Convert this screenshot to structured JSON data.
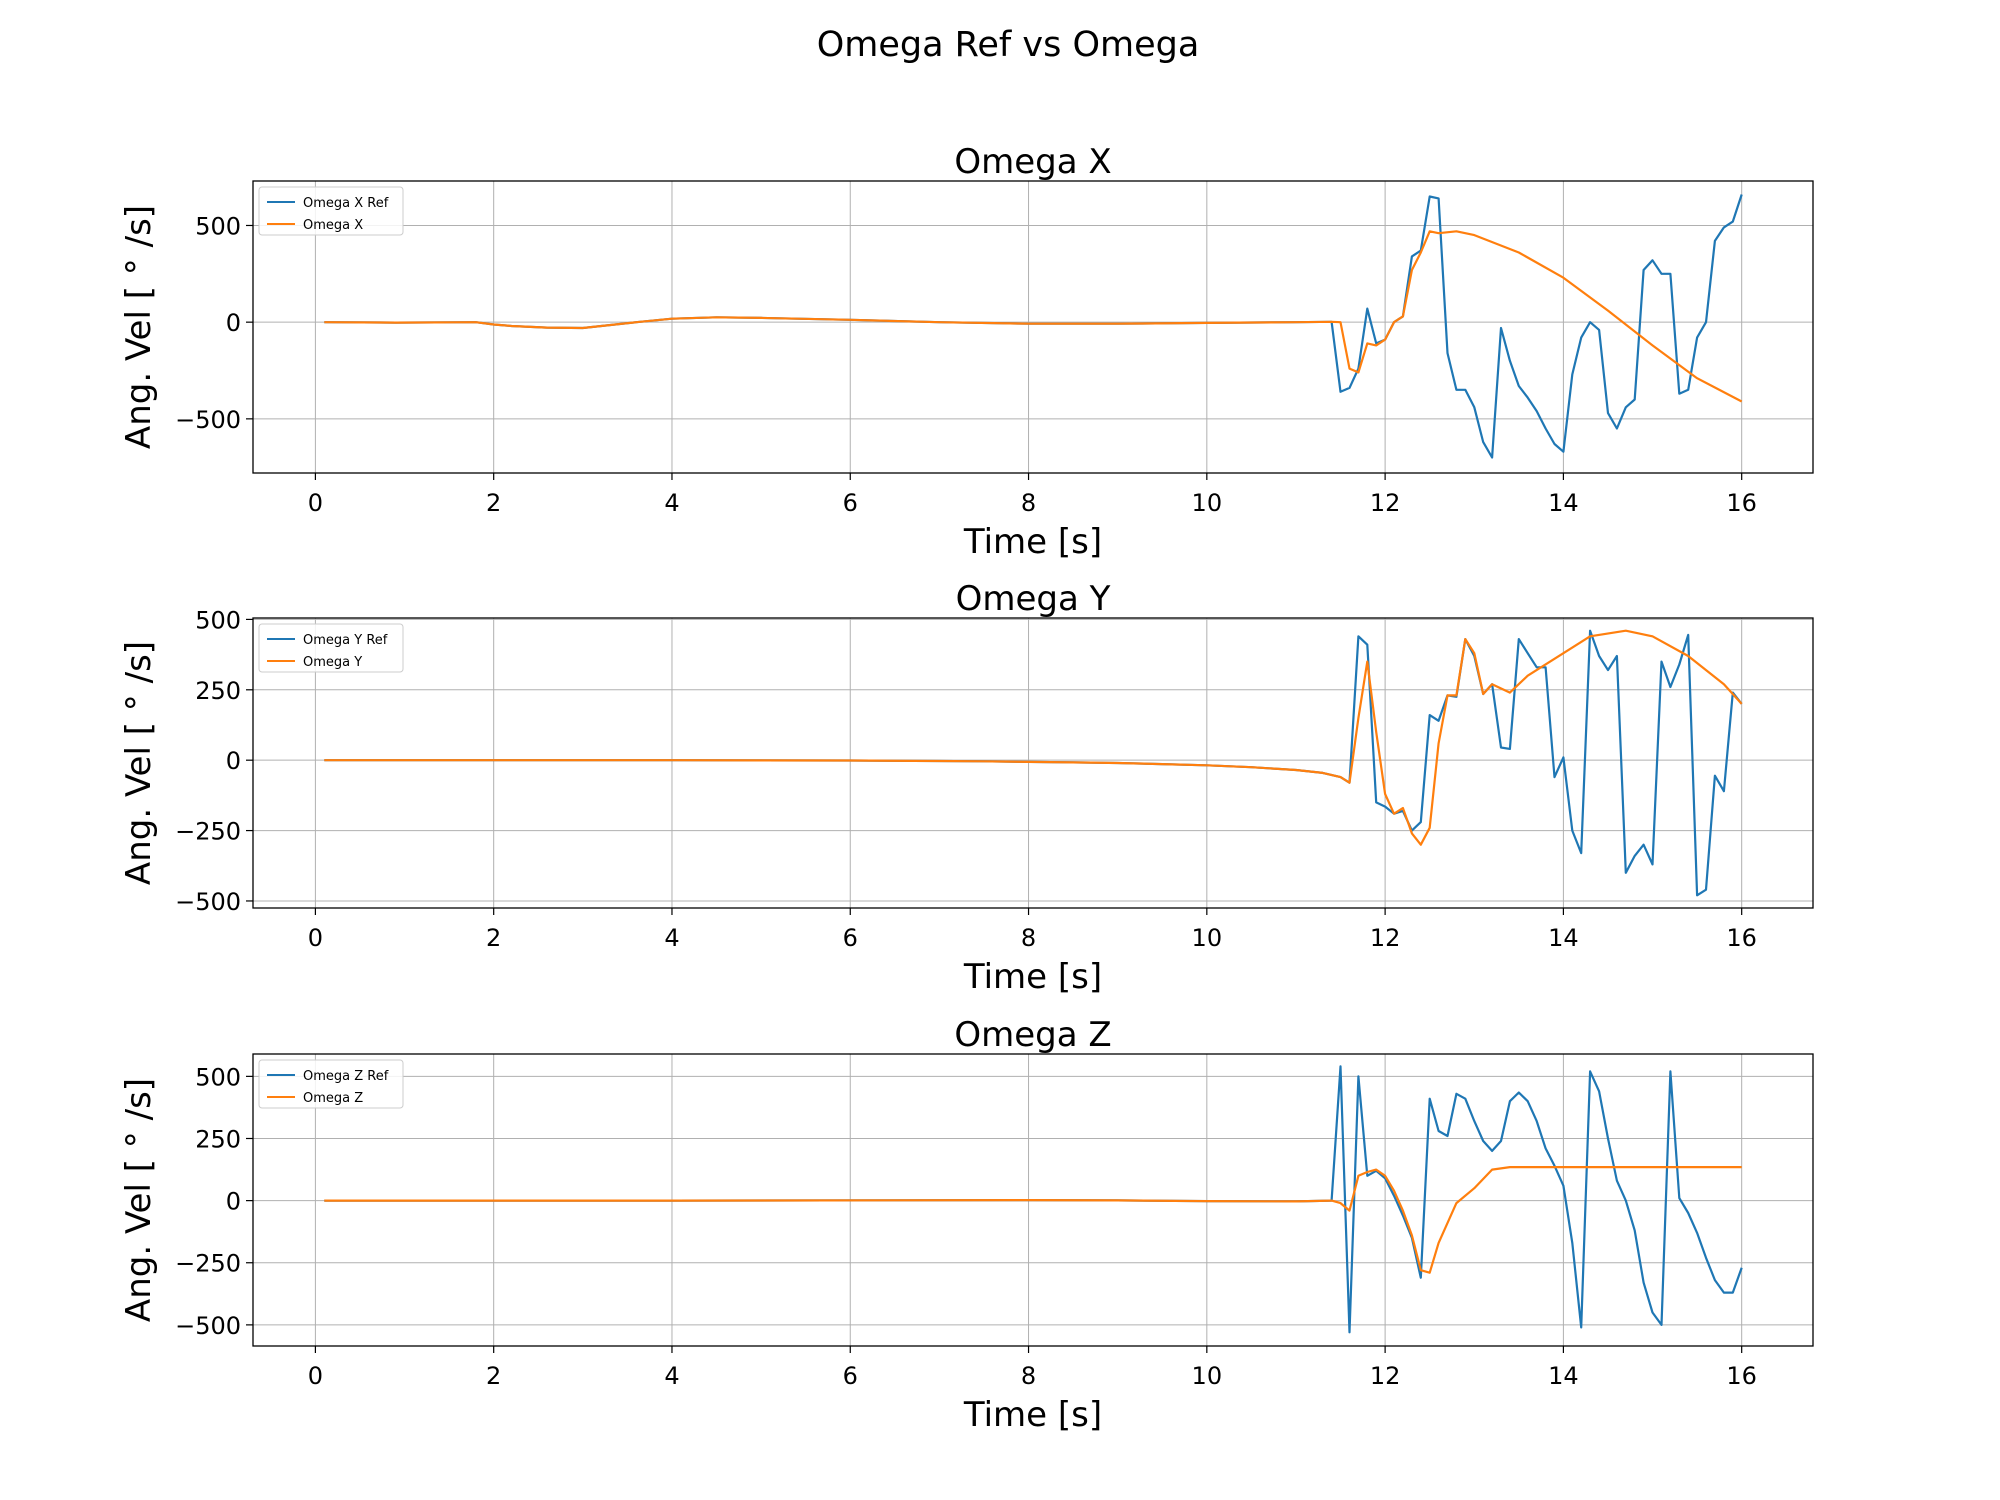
{
  "figure": {
    "title": "Omega Ref vs Omega"
  },
  "colors": {
    "ref": "#1f77b4",
    "actual": "#ff7f0e",
    "grid": "#b0b0b0"
  },
  "chart_data": [
    {
      "type": "line",
      "title": "Omega X",
      "xlabel": "Time [s]",
      "ylabel": "Ang. Vel [ ° /s]",
      "xlim": [
        -0.7,
        16.8
      ],
      "ylim": [
        -780,
        730
      ],
      "xticks": [
        0,
        2,
        4,
        6,
        8,
        10,
        12,
        14,
        16
      ],
      "yticks": [
        -500,
        0,
        500
      ],
      "ytick_labels": [
        "−500",
        "0",
        "500"
      ],
      "grid": true,
      "legend": "upper-left",
      "series": [
        {
          "name": "Omega X Ref",
          "x": [
            0.1,
            0.9,
            1.8,
            2.0,
            2.2,
            2.6,
            3.0,
            3.6,
            4.0,
            4.5,
            5.0,
            6.0,
            7.0,
            8.0,
            9.0,
            10.0,
            11.0,
            11.4,
            11.5,
            11.6,
            11.7,
            11.8,
            11.9,
            12.0,
            12.1,
            12.2,
            12.3,
            12.4,
            12.5,
            12.6,
            12.7,
            12.8,
            12.9,
            13.0,
            13.1,
            13.2,
            13.3,
            13.4,
            13.5,
            13.6,
            13.7,
            13.8,
            13.9,
            14.0,
            14.1,
            14.2,
            14.3,
            14.4,
            14.5,
            14.6,
            14.7,
            14.8,
            14.9,
            15.0,
            15.1,
            15.2,
            15.3,
            15.4,
            15.5,
            15.6,
            15.7,
            15.8,
            15.9,
            16.0
          ],
          "y": [
            0,
            -2,
            0,
            -12,
            -20,
            -28,
            -30,
            0,
            18,
            25,
            22,
            12,
            0,
            -8,
            -8,
            -4,
            0,
            2,
            -360,
            -340,
            -240,
            70,
            -110,
            -90,
            0,
            30,
            340,
            370,
            650,
            640,
            -160,
            -350,
            -350,
            -440,
            -620,
            -700,
            -30,
            -200,
            -330,
            -390,
            -460,
            -550,
            -630,
            -670,
            -270,
            -80,
            0,
            -40,
            -470,
            -550,
            -440,
            -400,
            270,
            320,
            250,
            250,
            -370,
            -350,
            -80,
            0,
            420,
            490,
            520,
            660
          ]
        },
        {
          "name": "Omega X",
          "x": [
            0.1,
            0.9,
            1.8,
            2.0,
            2.2,
            2.6,
            3.0,
            3.6,
            4.0,
            4.5,
            5.0,
            6.0,
            7.0,
            8.0,
            9.0,
            10.0,
            11.0,
            11.4,
            11.5,
            11.6,
            11.7,
            11.8,
            11.9,
            12.0,
            12.1,
            12.2,
            12.3,
            12.4,
            12.5,
            12.6,
            12.8,
            13.0,
            13.5,
            14.0,
            14.5,
            15.0,
            15.5,
            16.0
          ],
          "y": [
            0,
            -2,
            0,
            -12,
            -20,
            -28,
            -30,
            0,
            18,
            25,
            22,
            12,
            0,
            -8,
            -8,
            -4,
            0,
            2,
            0,
            -240,
            -260,
            -110,
            -120,
            -90,
            0,
            30,
            270,
            360,
            470,
            460,
            470,
            450,
            360,
            230,
            60,
            -120,
            -290,
            -410
          ]
        }
      ]
    },
    {
      "type": "line",
      "title": "Omega Y",
      "xlabel": "Time [s]",
      "ylabel": "Ang. Vel [ ° /s]",
      "xlim": [
        -0.7,
        16.8
      ],
      "ylim": [
        -525,
        505
      ],
      "xticks": [
        0,
        2,
        4,
        6,
        8,
        10,
        12,
        14,
        16
      ],
      "yticks": [
        -500,
        -250,
        0,
        250,
        500
      ],
      "ytick_labels": [
        "−500",
        "−250",
        "0",
        "250",
        "500"
      ],
      "grid": true,
      "legend": "upper-left",
      "series": [
        {
          "name": "Omega Y Ref",
          "x": [
            0.1,
            2.0,
            4.0,
            6.0,
            7.0,
            7.5,
            8.0,
            8.5,
            9.0,
            9.5,
            10.0,
            10.5,
            11.0,
            11.3,
            11.5,
            11.6,
            11.7,
            11.8,
            11.9,
            12.0,
            12.1,
            12.2,
            12.3,
            12.4,
            12.5,
            12.6,
            12.7,
            12.8,
            12.9,
            13.0,
            13.1,
            13.2,
            13.3,
            13.4,
            13.5,
            13.6,
            13.7,
            13.8,
            13.9,
            14.0,
            14.1,
            14.2,
            14.3,
            14.4,
            14.5,
            14.6,
            14.7,
            14.8,
            14.9,
            15.0,
            15.1,
            15.2,
            15.3,
            15.4,
            15.5,
            15.6,
            15.7,
            15.8,
            15.9,
            16.0
          ],
          "y": [
            0,
            0,
            0,
            -1,
            -3,
            -4,
            -6,
            -8,
            -10,
            -14,
            -18,
            -25,
            -35,
            -45,
            -60,
            -80,
            440,
            410,
            -150,
            -165,
            -190,
            -180,
            -250,
            -220,
            160,
            140,
            230,
            225,
            430,
            370,
            235,
            270,
            45,
            40,
            430,
            380,
            330,
            330,
            -60,
            10,
            -250,
            -330,
            460,
            370,
            320,
            370,
            -400,
            -340,
            -300,
            -370,
            350,
            260,
            340,
            445,
            -480,
            -460,
            -55,
            -110,
            240,
            200
          ]
        },
        {
          "name": "Omega Y",
          "x": [
            0.1,
            2.0,
            4.0,
            6.0,
            7.0,
            7.5,
            8.0,
            8.5,
            9.0,
            9.5,
            10.0,
            10.5,
            11.0,
            11.3,
            11.5,
            11.6,
            11.7,
            11.8,
            11.9,
            12.0,
            12.1,
            12.2,
            12.3,
            12.4,
            12.5,
            12.6,
            12.7,
            12.8,
            12.9,
            13.0,
            13.1,
            13.2,
            13.4,
            13.6,
            14.0,
            14.3,
            14.7,
            15.0,
            15.4,
            15.8,
            16.0
          ],
          "y": [
            0,
            0,
            0,
            -1,
            -3,
            -4,
            -6,
            -8,
            -10,
            -14,
            -18,
            -25,
            -35,
            -45,
            -60,
            -80,
            150,
            350,
            100,
            -120,
            -190,
            -170,
            -260,
            -300,
            -240,
            60,
            230,
            230,
            430,
            380,
            235,
            270,
            240,
            300,
            380,
            440,
            460,
            440,
            370,
            270,
            200
          ]
        }
      ]
    },
    {
      "type": "line",
      "title": "Omega Z",
      "xlabel": "Time [s]",
      "ylabel": "Ang. Vel [ ° /s]",
      "xlim": [
        -0.7,
        16.8
      ],
      "ylim": [
        -585,
        590
      ],
      "xticks": [
        0,
        2,
        4,
        6,
        8,
        10,
        12,
        14,
        16
      ],
      "yticks": [
        -500,
        -250,
        0,
        250,
        500
      ],
      "ytick_labels": [
        "−500",
        "−250",
        "0",
        "250",
        "500"
      ],
      "grid": true,
      "legend": "upper-left",
      "series": [
        {
          "name": "Omega Z Ref",
          "x": [
            0.1,
            4.0,
            8.0,
            9.0,
            10.0,
            11.0,
            11.4,
            11.5,
            11.6,
            11.7,
            11.8,
            11.9,
            12.0,
            12.1,
            12.2,
            12.3,
            12.4,
            12.5,
            12.6,
            12.7,
            12.8,
            12.9,
            13.0,
            13.1,
            13.2,
            13.3,
            13.4,
            13.5,
            13.6,
            13.7,
            13.8,
            13.9,
            14.0,
            14.1,
            14.2,
            14.3,
            14.4,
            14.5,
            14.6,
            14.7,
            14.8,
            14.9,
            15.0,
            15.1,
            15.2,
            15.3,
            15.4,
            15.5,
            15.6,
            15.7,
            15.8,
            15.9,
            16.0
          ],
          "y": [
            0,
            0,
            2,
            1,
            -2,
            -3,
            0,
            540,
            -530,
            500,
            100,
            120,
            90,
            20,
            -60,
            -150,
            -310,
            410,
            280,
            260,
            430,
            410,
            320,
            240,
            200,
            240,
            400,
            435,
            400,
            320,
            210,
            140,
            60,
            -170,
            -510,
            520,
            440,
            250,
            80,
            0,
            -120,
            -330,
            -450,
            -500,
            520,
            10,
            -50,
            -130,
            -230,
            -320,
            -370,
            -370,
            -270
          ]
        },
        {
          "name": "Omega Z",
          "x": [
            0.1,
            4.0,
            8.0,
            9.0,
            10.0,
            11.0,
            11.4,
            11.5,
            11.6,
            11.7,
            11.8,
            11.9,
            12.0,
            12.1,
            12.2,
            12.3,
            12.4,
            12.5,
            12.6,
            12.8,
            13.0,
            13.2,
            13.4,
            14.0,
            15.0,
            16.0
          ],
          "y": [
            0,
            0,
            2,
            1,
            -2,
            -3,
            0,
            -10,
            -40,
            100,
            115,
            125,
            100,
            40,
            -40,
            -140,
            -280,
            -290,
            -170,
            -10,
            50,
            125,
            135,
            135,
            135,
            135
          ]
        }
      ]
    }
  ]
}
